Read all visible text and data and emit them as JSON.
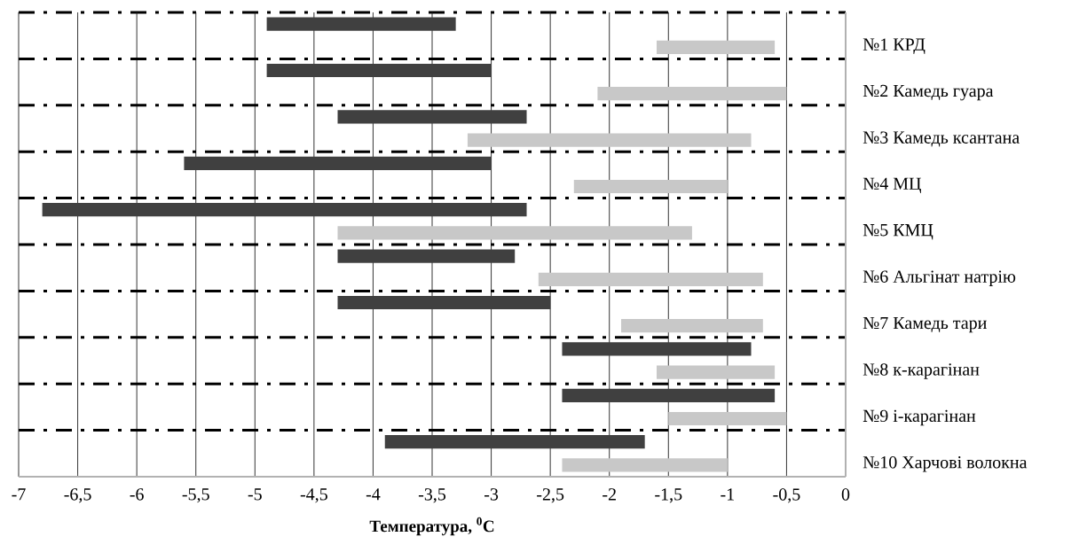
{
  "chart_data": {
    "type": "bar",
    "orientation": "horizontal",
    "xlabel": "**Температура, $^{0}$C**",
    "categories": [
      "№1 КРД",
      "№2 Камедь гуара",
      "№3 Камедь ксантана",
      "№4 МЦ",
      "№5 КМЦ",
      "№6 Альгінат натрію",
      "№7 Камедь тари",
      "№8 к-карагінан",
      "№9 і-карагінан",
      "№10 Харчові волокна"
    ],
    "series": [
      {
        "color": "#404040",
        "base": [
          -4.9,
          -4.9,
          -4.3,
          -5.6,
          -6.8,
          -4.3,
          -4.3,
          -2.4,
          -2.4,
          -3.9
        ],
        "values": [
          1.6,
          1.9,
          1.6,
          2.6,
          4.1,
          1.5,
          1.8,
          1.6,
          1.8,
          2.2
        ]
      },
      {
        "color": "#c8c8c8",
        "base": [
          -1.6,
          -2.1,
          -3.2,
          -2.3,
          -4.3,
          -2.6,
          -1.9,
          -1.6,
          -1.5,
          -2.4
        ],
        "values": [
          1.0,
          1.6,
          2.4,
          1.3,
          3.0,
          1.9,
          1.2,
          1.0,
          1.0,
          1.4
        ]
      }
    ],
    "xlim": [
      -7,
      0
    ],
    "xticks": [
      -7,
      {
        "value": -6.5,
        "label": "-6,5"
      },
      -6,
      {
        "value": -5.5,
        "label": "-5,5"
      },
      -5,
      {
        "value": -4.5,
        "label": "-4,5"
      },
      -4,
      {
        "value": -3.5,
        "label": "-3,5"
      },
      -3,
      {
        "value": -2.5,
        "label": "-2,5"
      },
      -2,
      {
        "value": -1.5,
        "label": "-1,5"
      },
      -1,
      {
        "value": -0.5,
        "label": "-0,5"
      },
      0
    ],
    "grid": true
  }
}
